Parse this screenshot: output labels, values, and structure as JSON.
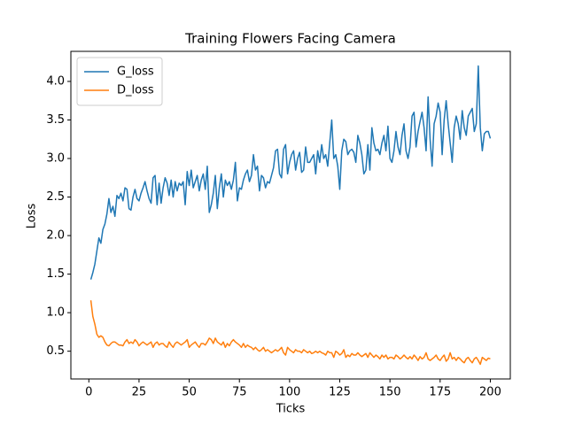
{
  "chart_data": {
    "type": "line",
    "title": "Training Flowers Facing Camera",
    "xlabel": "Ticks",
    "ylabel": "Loss",
    "legend": "upper left",
    "x": [
      1,
      2,
      3,
      4,
      5,
      6,
      7,
      8,
      9,
      10,
      11,
      12,
      13,
      14,
      15,
      16,
      17,
      18,
      19,
      20,
      21,
      22,
      23,
      24,
      25,
      26,
      27,
      28,
      29,
      30,
      31,
      32,
      33,
      34,
      35,
      36,
      37,
      38,
      39,
      40,
      41,
      42,
      43,
      44,
      45,
      46,
      47,
      48,
      49,
      50,
      51,
      52,
      53,
      54,
      55,
      56,
      57,
      58,
      59,
      60,
      61,
      62,
      63,
      64,
      65,
      66,
      67,
      68,
      69,
      70,
      71,
      72,
      73,
      74,
      75,
      76,
      77,
      78,
      79,
      80,
      81,
      82,
      83,
      84,
      85,
      86,
      87,
      88,
      89,
      90,
      91,
      92,
      93,
      94,
      95,
      96,
      97,
      98,
      99,
      100,
      101,
      102,
      103,
      104,
      105,
      106,
      107,
      108,
      109,
      110,
      111,
      112,
      113,
      114,
      115,
      116,
      117,
      118,
      119,
      120,
      121,
      122,
      123,
      124,
      125,
      126,
      127,
      128,
      129,
      130,
      131,
      132,
      133,
      134,
      135,
      136,
      137,
      138,
      139,
      140,
      141,
      142,
      143,
      144,
      145,
      146,
      147,
      148,
      149,
      150,
      151,
      152,
      153,
      154,
      155,
      156,
      157,
      158,
      159,
      160,
      161,
      162,
      163,
      164,
      165,
      166,
      167,
      168,
      169,
      170,
      171,
      172,
      173,
      174,
      175,
      176,
      177,
      178,
      179,
      180,
      181,
      182,
      183,
      184,
      185,
      186,
      187,
      188,
      189,
      190,
      191,
      192,
      193,
      194,
      195,
      196,
      197,
      198,
      199,
      200
    ],
    "series": [
      {
        "name": "G_loss",
        "color": "#1f77b4",
        "values": [
          1.43,
          1.52,
          1.63,
          1.8,
          1.97,
          1.9,
          2.08,
          2.15,
          2.28,
          2.48,
          2.3,
          2.38,
          2.25,
          2.52,
          2.48,
          2.55,
          2.45,
          2.62,
          2.6,
          2.35,
          2.33,
          2.5,
          2.6,
          2.48,
          2.45,
          2.55,
          2.62,
          2.7,
          2.58,
          2.48,
          2.42,
          2.75,
          2.78,
          2.4,
          2.68,
          2.42,
          2.62,
          2.75,
          2.68,
          2.52,
          2.72,
          2.5,
          2.7,
          2.58,
          2.68,
          2.65,
          2.7,
          2.4,
          2.83,
          2.65,
          2.85,
          2.62,
          2.7,
          2.78,
          2.58,
          2.72,
          2.8,
          2.6,
          2.9,
          2.3,
          2.4,
          2.55,
          2.78,
          2.35,
          2.62,
          2.8,
          2.5,
          2.72,
          2.65,
          2.7,
          2.6,
          2.72,
          2.95,
          2.45,
          2.62,
          2.6,
          2.72,
          2.8,
          2.85,
          2.7,
          2.78,
          3.05,
          2.85,
          2.9,
          2.58,
          2.78,
          2.75,
          2.62,
          2.7,
          2.68,
          2.78,
          2.88,
          3.1,
          3.12,
          2.8,
          2.75,
          3.12,
          3.18,
          2.8,
          2.95,
          3.05,
          3.1,
          2.85,
          3.0,
          3.08,
          2.82,
          2.85,
          3.15,
          2.95,
          2.95,
          3.0,
          3.05,
          2.8,
          3.1,
          2.95,
          3.18,
          3.0,
          3.05,
          2.9,
          3.2,
          3.5,
          3.0,
          3.05,
          2.9,
          2.6,
          3.1,
          3.25,
          3.22,
          3.05,
          3.1,
          3.12,
          3.08,
          2.95,
          3.3,
          3.2,
          3.05,
          2.8,
          2.85,
          3.18,
          2.85,
          3.4,
          3.2,
          3.1,
          3.12,
          3.05,
          3.2,
          3.3,
          3.1,
          3.42,
          3.0,
          2.95,
          3.1,
          3.35,
          3.15,
          3.05,
          3.3,
          3.45,
          3.1,
          3.0,
          3.15,
          3.55,
          3.6,
          3.15,
          3.35,
          3.48,
          3.6,
          3.4,
          3.1,
          3.8,
          3.25,
          2.9,
          3.45,
          3.55,
          3.72,
          3.6,
          3.05,
          3.5,
          3.75,
          3.45,
          3.2,
          2.95,
          3.4,
          3.55,
          3.45,
          3.25,
          3.62,
          3.4,
          3.3,
          3.55,
          3.6,
          3.65,
          3.35,
          3.45,
          4.2,
          3.4,
          3.1,
          3.32,
          3.35,
          3.35,
          3.26
        ]
      },
      {
        "name": "D_loss",
        "color": "#ff7f0e",
        "values": [
          1.16,
          0.95,
          0.85,
          0.72,
          0.68,
          0.7,
          0.68,
          0.62,
          0.58,
          0.57,
          0.6,
          0.62,
          0.62,
          0.6,
          0.58,
          0.58,
          0.57,
          0.62,
          0.65,
          0.6,
          0.62,
          0.6,
          0.65,
          0.62,
          0.57,
          0.6,
          0.62,
          0.6,
          0.58,
          0.6,
          0.62,
          0.55,
          0.6,
          0.62,
          0.58,
          0.6,
          0.6,
          0.57,
          0.55,
          0.62,
          0.58,
          0.55,
          0.6,
          0.62,
          0.6,
          0.58,
          0.6,
          0.62,
          0.65,
          0.55,
          0.58,
          0.6,
          0.62,
          0.58,
          0.55,
          0.6,
          0.6,
          0.58,
          0.62,
          0.67,
          0.65,
          0.6,
          0.67,
          0.62,
          0.6,
          0.58,
          0.62,
          0.55,
          0.6,
          0.57,
          0.62,
          0.65,
          0.62,
          0.6,
          0.58,
          0.55,
          0.6,
          0.55,
          0.58,
          0.56,
          0.55,
          0.52,
          0.55,
          0.52,
          0.5,
          0.52,
          0.55,
          0.5,
          0.52,
          0.5,
          0.48,
          0.5,
          0.52,
          0.5,
          0.52,
          0.55,
          0.48,
          0.45,
          0.55,
          0.52,
          0.5,
          0.48,
          0.52,
          0.5,
          0.5,
          0.48,
          0.52,
          0.5,
          0.48,
          0.5,
          0.47,
          0.48,
          0.5,
          0.48,
          0.5,
          0.48,
          0.47,
          0.45,
          0.5,
          0.48,
          0.48,
          0.42,
          0.5,
          0.48,
          0.45,
          0.47,
          0.52,
          0.42,
          0.45,
          0.43,
          0.47,
          0.45,
          0.45,
          0.48,
          0.45,
          0.43,
          0.45,
          0.47,
          0.42,
          0.48,
          0.45,
          0.42,
          0.45,
          0.43,
          0.4,
          0.45,
          0.42,
          0.45,
          0.4,
          0.42,
          0.42,
          0.4,
          0.45,
          0.43,
          0.4,
          0.42,
          0.45,
          0.42,
          0.4,
          0.43,
          0.4,
          0.45,
          0.42,
          0.38,
          0.43,
          0.4,
          0.42,
          0.48,
          0.4,
          0.38,
          0.4,
          0.42,
          0.45,
          0.4,
          0.38,
          0.42,
          0.45,
          0.37,
          0.4,
          0.48,
          0.4,
          0.42,
          0.38,
          0.42,
          0.4,
          0.37,
          0.35,
          0.4,
          0.42,
          0.38,
          0.35,
          0.4,
          0.42,
          0.38,
          0.33,
          0.42,
          0.4,
          0.38,
          0.41,
          0.4
        ]
      }
    ],
    "xlim": [
      -8.95,
      209.95
    ],
    "xticks": [
      0,
      25,
      50,
      75,
      100,
      125,
      150,
      175,
      200
    ],
    "ylim": [
      0.14,
      4.39
    ],
    "yticks": [
      0.5,
      {
        "value": 1,
        "label": "1.0"
      },
      1.5,
      {
        "value": 2,
        "label": "2.0"
      },
      2.5,
      {
        "value": 3,
        "label": "3.0"
      },
      3.5,
      {
        "value": 4,
        "label": "4.0"
      }
    ]
  }
}
